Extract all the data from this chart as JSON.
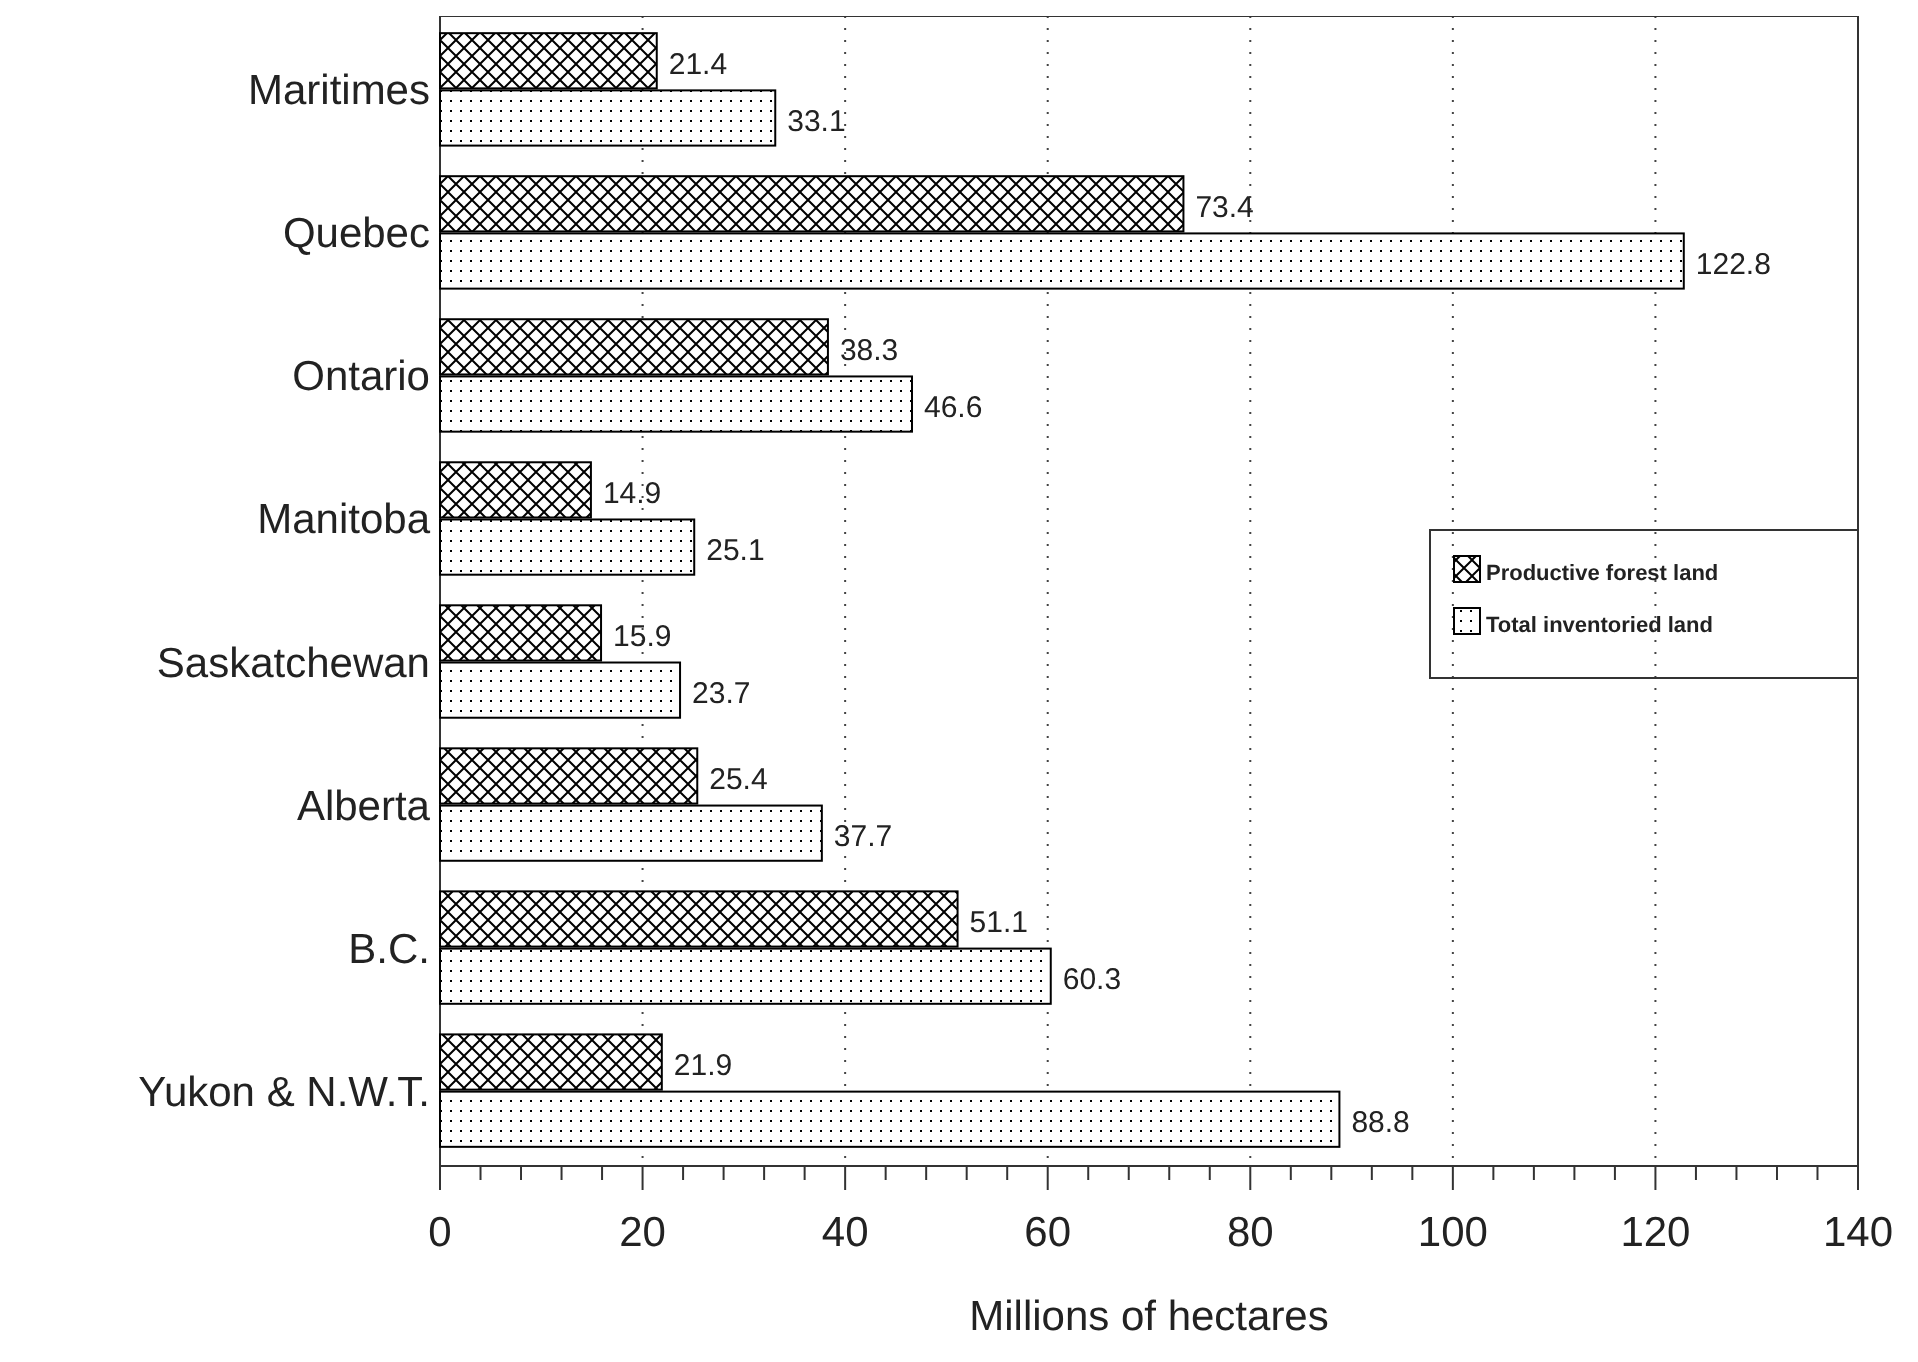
{
  "chart_data": {
    "type": "bar",
    "orientation": "horizontal",
    "xlabel": "Millions of hectares",
    "categories": [
      "Maritimes",
      "Quebec",
      "Ontario",
      "Manitoba",
      "Saskatchewan",
      "Alberta",
      "B.C.",
      "Yukon & N.W.T."
    ],
    "series": [
      {
        "name": "Productive forest land",
        "color": "#000000",
        "values": [
          21.4,
          73.4,
          38.3,
          14.9,
          15.9,
          25.4,
          51.1,
          21.9
        ]
      },
      {
        "name": "Total inventoried land",
        "color": "#000000",
        "values": [
          33.1,
          122.8,
          46.6,
          25.1,
          23.7,
          37.7,
          60.3,
          88.8
        ]
      }
    ],
    "xlim": [
      0,
      140
    ],
    "xticks": [
      0,
      {
        "value": 4,
        "label": null
      },
      {
        "value": 8,
        "label": null
      },
      {
        "value": 12,
        "label": null
      },
      {
        "value": 16,
        "label": null
      },
      20,
      {
        "value": 24,
        "label": null
      },
      {
        "value": 28,
        "label": null
      },
      {
        "value": 32,
        "label": null
      },
      {
        "value": 36,
        "label": null
      },
      40,
      {
        "value": 44,
        "label": null
      },
      {
        "value": 48,
        "label": null
      },
      {
        "value": 52,
        "label": null
      },
      {
        "value": 56,
        "label": null
      },
      60,
      {
        "value": 64,
        "label": null
      },
      {
        "value": 68,
        "label": null
      },
      {
        "value": 72,
        "label": null
      },
      {
        "value": 76,
        "label": null
      },
      80,
      {
        "value": 84,
        "label": null
      },
      {
        "value": 88,
        "label": null
      },
      {
        "value": 92,
        "label": null
      },
      {
        "value": 96,
        "label": null
      },
      100,
      {
        "value": 104,
        "label": null
      },
      {
        "value": 108,
        "label": null
      },
      {
        "value": 112,
        "label": null
      },
      {
        "value": 116,
        "label": null
      },
      120,
      {
        "value": 124,
        "label": null
      },
      {
        "value": 128,
        "label": null
      },
      {
        "value": 132,
        "label": null
      },
      {
        "value": 136,
        "label": null
      },
      140
    ],
    "grid": "x",
    "legend": "right",
    "data_labels": true
  }
}
